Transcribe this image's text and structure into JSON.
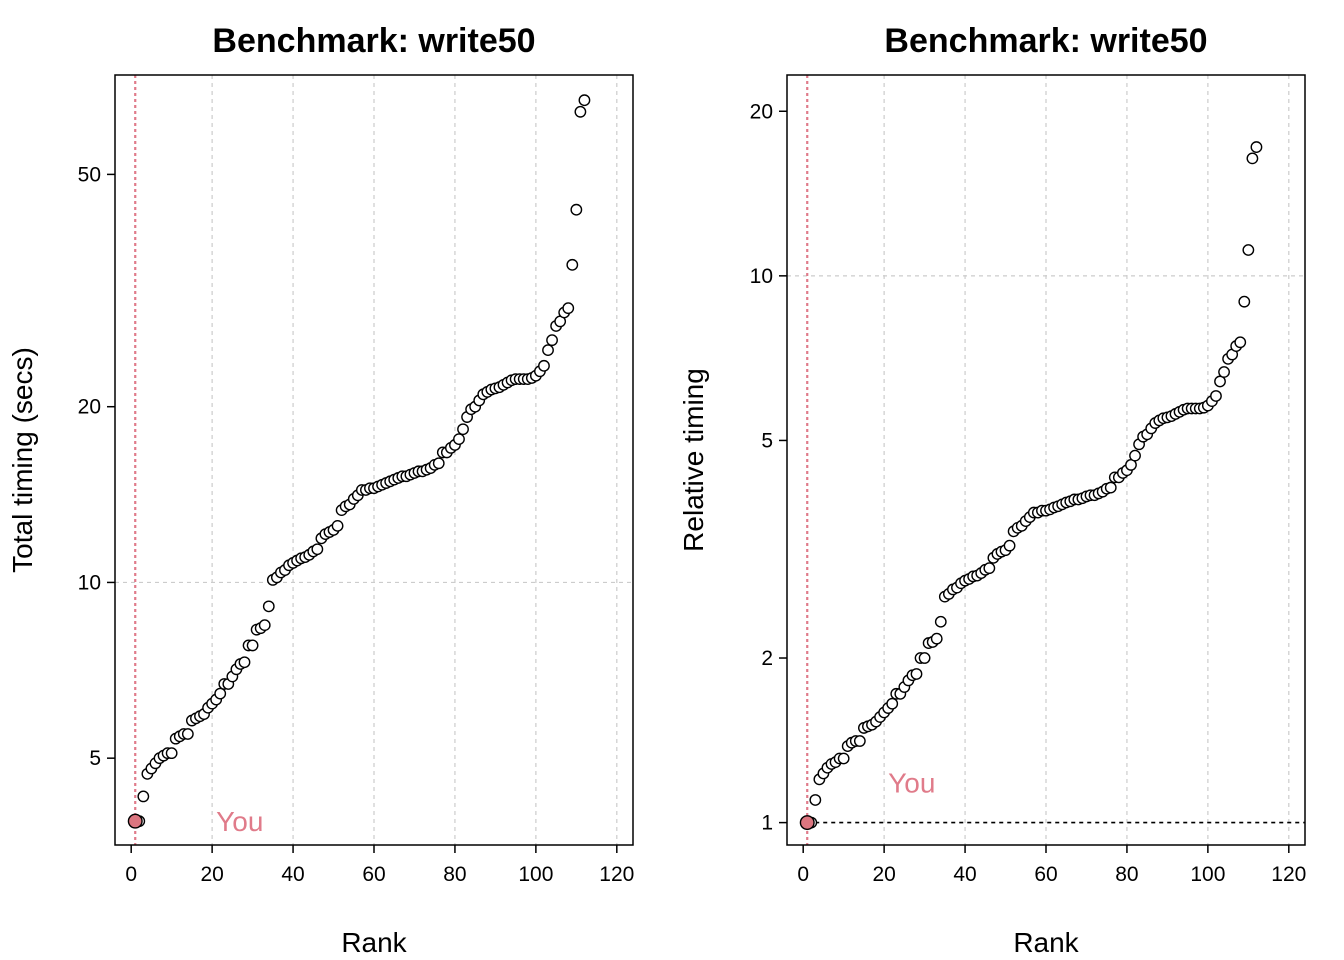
{
  "colors": {
    "highlight": "#e07b8a",
    "highlight_fill": "#dc7680"
  },
  "chart_data": [
    {
      "type": "scatter",
      "title": "Benchmark: write50",
      "xlabel": "Rank",
      "ylabel": "Total timing (secs)",
      "y_scale": "log",
      "xlim": [
        -4,
        124
      ],
      "ylim": [
        3.55,
        74
      ],
      "x_ticks": [
        0,
        20,
        40,
        60,
        80,
        100,
        120
      ],
      "y_ticks": [
        5,
        10,
        20,
        50
      ],
      "x_grid": [
        20,
        40,
        60,
        80,
        100,
        120
      ],
      "y_grid": [
        10
      ],
      "highlight": {
        "label": "You",
        "rank": 1,
        "value": 3.9
      },
      "reference_line": null,
      "series": [
        {
          "values": [
            3.9,
            4.3,
            4.7,
            4.8,
            4.9,
            5.0,
            5.05,
            5.1,
            5.1,
            5.4,
            5.45,
            5.5,
            5.5,
            5.8,
            5.85,
            5.9,
            5.95,
            6.1,
            6.2,
            6.3,
            6.45,
            6.7,
            6.7,
            6.9,
            7.1,
            7.25,
            7.3,
            7.8,
            7.8,
            8.3,
            8.35,
            8.45,
            9.1,
            10.1,
            10.2,
            10.4,
            10.5,
            10.7,
            10.8,
            10.9,
            11.0,
            11.05,
            11.15,
            11.3,
            11.4,
            11.9,
            12.1,
            12.2,
            12.3,
            12.5,
            13.3,
            13.5,
            13.6,
            13.9,
            14.1,
            14.4,
            14.4,
            14.5,
            14.5,
            14.6,
            14.7,
            14.8,
            14.9,
            15.0,
            15.1,
            15.2,
            15.2,
            15.3,
            15.4,
            15.5,
            15.5,
            15.6,
            15.7,
            15.9,
            16.0,
            16.7,
            16.7,
            17.0,
            17.2,
            17.6,
            18.3,
            19.2,
            19.8,
            20.0,
            20.5,
            21.0,
            21.2,
            21.4,
            21.5,
            21.6,
            21.8,
            22.0,
            22.2,
            22.3,
            22.3,
            22.3,
            22.3,
            22.4,
            22.6,
            23.0,
            23.5,
            25.0,
            26.0,
            27.5,
            28.0,
            29.0,
            29.5,
            35.0,
            43.5,
            64.0,
            67.0
          ]
        }
      ]
    },
    {
      "type": "scatter",
      "title": "Benchmark: write50",
      "xlabel": "Rank",
      "ylabel": "Relative timing",
      "y_scale": "log",
      "xlim": [
        -4,
        124
      ],
      "ylim": [
        0.91,
        23.3
      ],
      "x_ticks": [
        0,
        20,
        40,
        60,
        80,
        100,
        120
      ],
      "y_ticks": [
        1,
        2,
        5,
        10,
        20
      ],
      "x_grid": [
        20,
        40,
        60,
        80,
        100,
        120
      ],
      "y_grid": [
        10
      ],
      "highlight": {
        "label": "You",
        "rank": 1,
        "value": 1.0
      },
      "reference_line": {
        "y": 1
      },
      "series": [
        {
          "values": [
            1.0,
            1.1,
            1.2,
            1.23,
            1.26,
            1.28,
            1.29,
            1.31,
            1.31,
            1.38,
            1.4,
            1.41,
            1.41,
            1.49,
            1.5,
            1.51,
            1.53,
            1.56,
            1.59,
            1.62,
            1.65,
            1.72,
            1.72,
            1.77,
            1.82,
            1.86,
            1.87,
            2.0,
            2.0,
            2.13,
            2.14,
            2.17,
            2.33,
            2.59,
            2.62,
            2.67,
            2.69,
            2.74,
            2.77,
            2.79,
            2.82,
            2.83,
            2.86,
            2.9,
            2.92,
            3.05,
            3.1,
            3.13,
            3.15,
            3.21,
            3.41,
            3.46,
            3.49,
            3.56,
            3.62,
            3.69,
            3.69,
            3.72,
            3.72,
            3.74,
            3.77,
            3.79,
            3.82,
            3.85,
            3.87,
            3.9,
            3.9,
            3.92,
            3.95,
            3.97,
            3.97,
            4.0,
            4.03,
            4.08,
            4.1,
            4.28,
            4.28,
            4.36,
            4.41,
            4.51,
            4.69,
            4.92,
            5.08,
            5.13,
            5.26,
            5.38,
            5.44,
            5.49,
            5.51,
            5.54,
            5.59,
            5.64,
            5.69,
            5.72,
            5.72,
            5.72,
            5.72,
            5.74,
            5.79,
            5.9,
            6.03,
            6.41,
            6.67,
            7.05,
            7.18,
            7.44,
            7.56,
            8.97,
            11.15,
            16.4,
            17.2
          ]
        }
      ]
    }
  ]
}
